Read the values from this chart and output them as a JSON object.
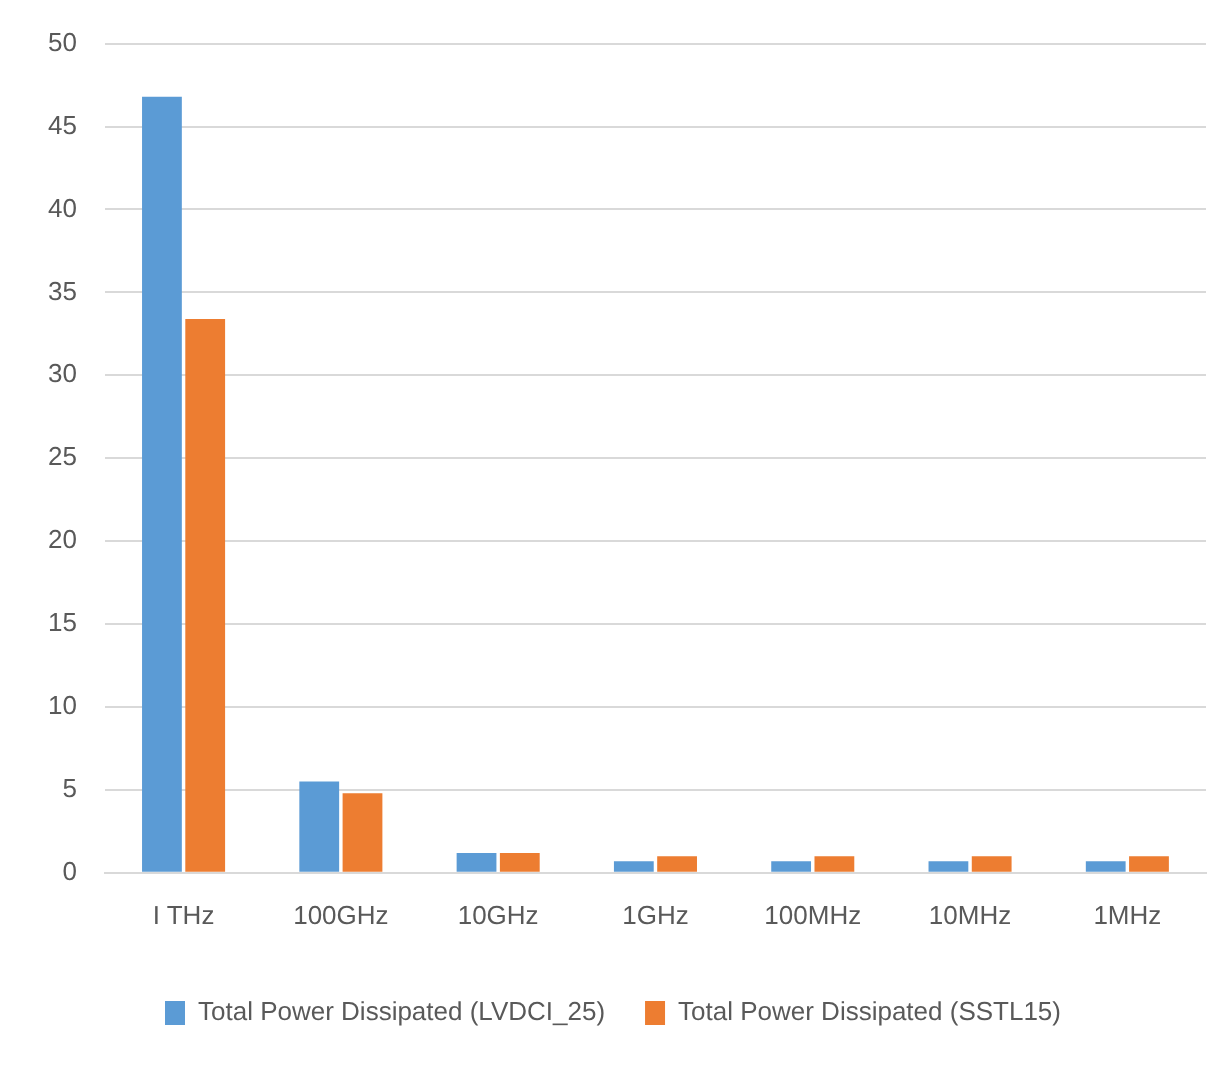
{
  "chart_data": {
    "type": "bar",
    "categories": [
      "I THz",
      "100GHz",
      "10GHz",
      "1GHz",
      "100MHz",
      "10MHz",
      "1MHz"
    ],
    "series": [
      {
        "name": "Total Power Dissipated (LVDCI_25)",
        "color": "#5b9bd5",
        "values": [
          46.8,
          5.5,
          1.2,
          0.7,
          0.7,
          0.7,
          0.7
        ]
      },
      {
        "name": "Total Power Dissipated (SSTL15)",
        "color": "#ed7d31",
        "values": [
          33.4,
          4.8,
          1.2,
          1.0,
          1.0,
          1.0,
          1.0
        ]
      }
    ],
    "ylim": [
      0,
      50
    ],
    "yticks": [
      0,
      5,
      10,
      15,
      20,
      25,
      30,
      35,
      40,
      45,
      50
    ],
    "grid": "y",
    "legend": "bottom"
  }
}
